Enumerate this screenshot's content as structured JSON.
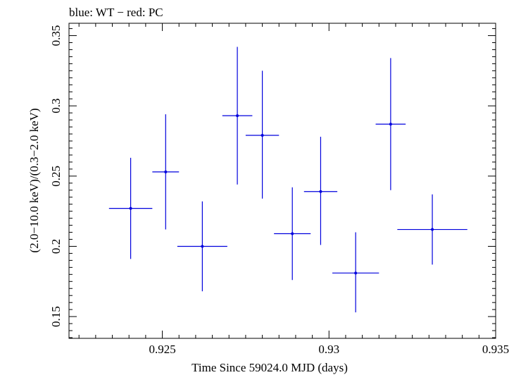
{
  "chart_data": {
    "type": "scatter",
    "title": "blue: WT − red: PC",
    "xlabel": "Time Since 59024.0 MJD (days)",
    "ylabel": "(2.0−10.0 keV)/(0.3−2.0 keV)",
    "xlim": [
      0.9222,
      0.935
    ],
    "ylim": [
      0.1345,
      0.3588
    ],
    "x_ticks": [
      0.925,
      0.93,
      0.935
    ],
    "x_tick_labels": [
      "0.925",
      "0.93",
      "0.935"
    ],
    "y_ticks": [
      0.15,
      0.2,
      0.25,
      0.3,
      0.35
    ],
    "y_tick_labels": [
      "0.15",
      "0.2",
      "0.25",
      "0.3",
      "0.35"
    ],
    "grid": false,
    "series": [
      {
        "color": "#0000dd",
        "points": [
          {
            "x": 0.92405,
            "y": 0.227,
            "xerr": 0.00065,
            "yerr_low": 0.036,
            "yerr_high": 0.036
          },
          {
            "x": 0.9251,
            "y": 0.253,
            "xerr": 0.0004,
            "yerr_low": 0.041,
            "yerr_high": 0.041
          },
          {
            "x": 0.9262,
            "y": 0.2,
            "xerr": 0.00075,
            "yerr_low": 0.032,
            "yerr_high": 0.032
          },
          {
            "x": 0.92725,
            "y": 0.293,
            "xerr": 0.00045,
            "yerr_low": 0.049,
            "yerr_high": 0.049
          },
          {
            "x": 0.928,
            "y": 0.279,
            "xerr": 0.0005,
            "yerr_low": 0.045,
            "yerr_high": 0.046
          },
          {
            "x": 0.9289,
            "y": 0.209,
            "xerr": 0.00055,
            "yerr_low": 0.033,
            "yerr_high": 0.033
          },
          {
            "x": 0.92975,
            "y": 0.239,
            "xerr": 0.0005,
            "yerr_low": 0.038,
            "yerr_high": 0.039
          },
          {
            "x": 0.9308,
            "y": 0.181,
            "xerr": 0.0007,
            "yerr_low": 0.028,
            "yerr_high": 0.029
          },
          {
            "x": 0.93185,
            "y": 0.287,
            "xerr": 0.00045,
            "yerr_low": 0.047,
            "yerr_high": 0.047
          },
          {
            "x": 0.9331,
            "y": 0.212,
            "xerr": 0.00105,
            "yerr_low": 0.025,
            "yerr_high": 0.025
          }
        ]
      }
    ]
  }
}
